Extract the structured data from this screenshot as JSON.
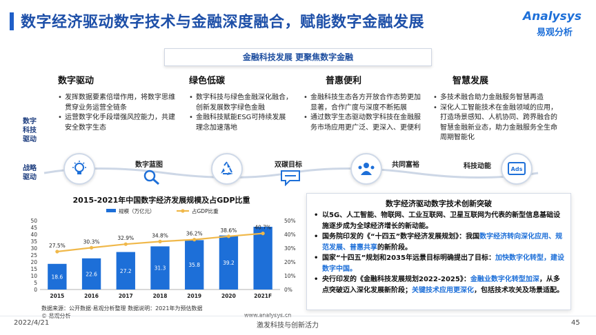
{
  "header": {
    "title": "数字经济驱动数字技术与金融深度融合，赋能数字金融发展",
    "logo_en": "Analysys",
    "logo_cn": "易观分析"
  },
  "banner": "金融科技发展  更聚焦数字金融",
  "row_labels": {
    "tech": "数字\n科技\n驱动",
    "strategy": "战略\n驱动"
  },
  "columns": [
    {
      "title": "数字驱动",
      "items": [
        "发挥数据要素倍增作用，将数字思维贯穿业务运营全链条",
        "运营数字化手段增强风控能力，共建安全数字生态"
      ]
    },
    {
      "title": "绿色低碳",
      "items": [
        "数字科技与绿色金融深化融合，创新发展数字绿色金融",
        "金融科技赋能ESG可持续发展理念加速落地"
      ]
    },
    {
      "title": "普惠便利",
      "items": [
        "金融科技生态各方开放合作态势更加显著，合作广度与深度不断拓展",
        "通过数字生态驱动数字科技在金融服务市场应用更广泛、更深入、更便利"
      ]
    },
    {
      "title": "智慧发展",
      "items": [
        "多技术融合助力金融服务智慧再造",
        "深化人工智能技术在金融领域的应用，打造场景感知、人机协同、跨界融合的智慧金融新业态，助力金融服务全生命周期智能化"
      ]
    }
  ],
  "timeline": {
    "icons": [
      "lightbulb-icon",
      "recycle-icon",
      "people-icon",
      "ads-screen-icon"
    ],
    "labels": [
      "数字蓝图",
      "双碳目标",
      "共同富裕",
      "科技动能"
    ]
  },
  "chart_data": {
    "type": "bar",
    "title": "2015-2021年中国数字经济发展规模及占GDP比重",
    "categories": [
      "2015",
      "2016",
      "2017",
      "2018",
      "2019",
      "2020",
      "2021F"
    ],
    "series": [
      {
        "name": "规模（万亿元）",
        "type": "bar",
        "axis": "left",
        "values": [
          18.6,
          22.6,
          27.2,
          31.3,
          35.8,
          39.2,
          45.5
        ],
        "labels": [
          "18.6",
          "22.6",
          "27.2",
          "31.3",
          "35.8",
          "39.2",
          ""
        ]
      },
      {
        "name": "占GDP比重",
        "type": "line",
        "axis": "right",
        "values": [
          27.5,
          30.3,
          32.9,
          34.8,
          36.2,
          38.6,
          40.7
        ],
        "labels": [
          "27.5%",
          "30.3%",
          "32.9%",
          "34.8%",
          "36.2%",
          "38.6%",
          "40.7%"
        ]
      }
    ],
    "left_ticks": [
      "0",
      "5",
      "10",
      "15",
      "20",
      "25",
      "30",
      "35",
      "40",
      "45",
      "50"
    ],
    "right_ticks": [
      "0%",
      "10%",
      "20%",
      "30%",
      "40%",
      "50%"
    ],
    "ylim_left": [
      0,
      50
    ],
    "ylim_right": [
      0,
      50
    ],
    "colors": {
      "bar": "#1d6fd8",
      "line": "#f0b84a"
    },
    "legend_position": "top",
    "source": "数据来源：公开数据·易观分析整理  数据说明：2021年为预估数据",
    "copyright": "© 易观分析",
    "website": "www.analysys.cn"
  },
  "panel": {
    "title": "数字经济驱动数字技术创新突破",
    "items": [
      [
        {
          "t": "以5G、人工智能、物联网、工业互联网、卫星互联网为代表的新型信息基础设施逐步成为全球经济增长的新动能。",
          "h": false
        }
      ],
      [
        {
          "t": "国务院印发的《“十四五”数字经济发展规划》：我国",
          "h": false
        },
        {
          "t": "数字经济转向深化应用、规范发展、普惠共享",
          "h": true
        },
        {
          "t": "的新阶段。",
          "h": false
        }
      ],
      [
        {
          "t": "国家“十四五”规划和2035年远景目标明确提出了目标：",
          "h": false
        },
        {
          "t": "加快数字化转型，建设数字中国。",
          "h": true
        }
      ],
      [
        {
          "t": "央行印发的《金融科技发展规划2022-2025》：",
          "h": false
        },
        {
          "t": "金融业数字化转型加深",
          "h": true
        },
        {
          "t": "，从多点突破迈入深化发展新阶段；",
          "h": false
        },
        {
          "t": "关键技术应用更深化",
          "h": true
        },
        {
          "t": "，包括技术攻关及场景适配。",
          "h": false
        }
      ]
    ]
  },
  "footer": {
    "date": "2022/4/21",
    "slogan": "激发科技与创新活力",
    "page": "45"
  }
}
